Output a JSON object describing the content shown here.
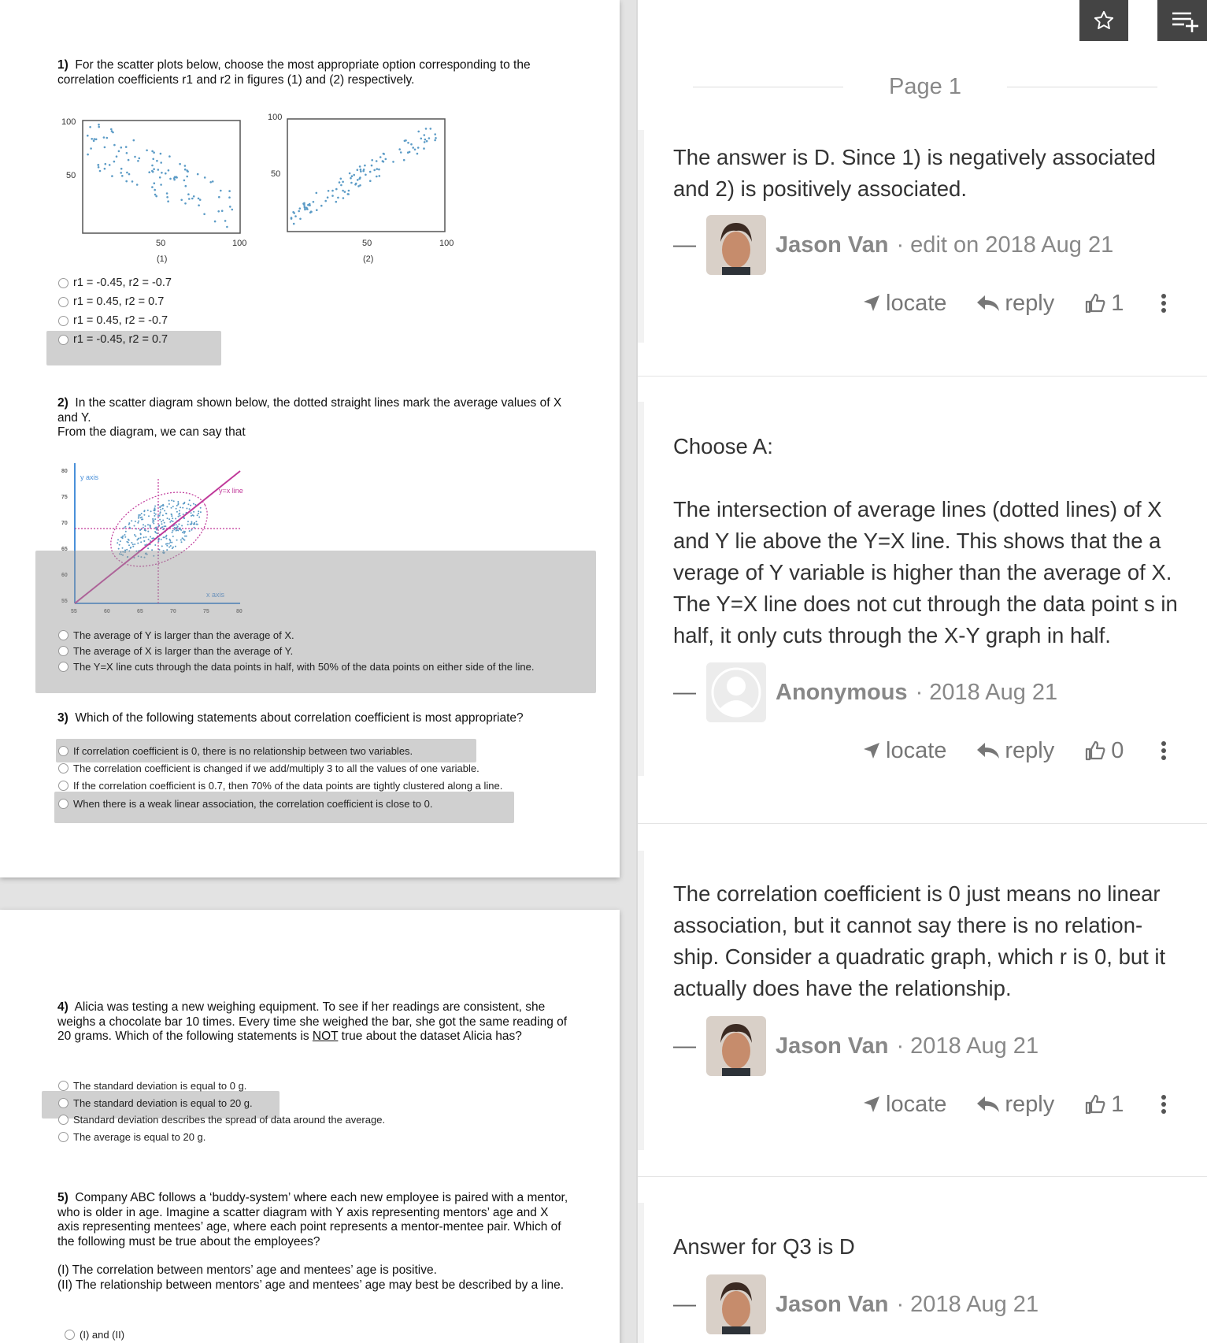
{
  "document": {
    "q1": {
      "number": "1)",
      "text": "For the scatter plots below, choose the most appropriate option corresponding to the correlation coefficients r1 and r2 in figures (1) and (2) respectively.",
      "plot1": {
        "y_top": "100",
        "y_mid": "50",
        "x_mid": "50",
        "x_right": "100",
        "caption": "(1)"
      },
      "plot2": {
        "y_top": "100",
        "y_mid": "50",
        "x_mid": "50",
        "x_right": "100",
        "caption": "(2)"
      },
      "options": [
        "r1 = -0.45, r2 = -0.7",
        "r1 = 0.45, r2 = 0.7",
        "r1 = 0.45, r2 = -0.7",
        "r1 = -0.45, r2 = 0.7"
      ]
    },
    "q2": {
      "number": "2)",
      "text_line1": "In the scatter diagram shown below, the dotted straight lines mark the average values of X and Y.",
      "text_line2": "From the diagram, we can say that",
      "plot": {
        "y_axis_label": "y axis",
        "x_axis_label": "x axis",
        "line_label": "y=x line",
        "y_ticks": [
          "80",
          "75",
          "70",
          "65",
          "60",
          "55"
        ],
        "x_ticks": [
          "55",
          "60",
          "65",
          "70",
          "75",
          "80"
        ]
      },
      "options": [
        "The average of Y is larger than the average of X.",
        "The average of X is larger than the average of Y.",
        "The Y=X line cuts through the data points in half, with 50% of the data points on either side of the line."
      ]
    },
    "q3": {
      "number": "3)",
      "text": "Which of the following statements about correlation coefficient is most appropriate?",
      "options": [
        "If correlation coefficient is 0, there is no relationship between two variables.",
        "The correlation coefficient is changed if we add/multiply 3 to all the values of one variable.",
        "If the correlation coefficient is 0.7, then 70% of the data points are tightly clustered along a line.",
        "When there is a weak linear association, the correlation coefficient is close to 0."
      ]
    },
    "q4": {
      "number": "4)",
      "text_before": "Alicia was testing a new weighing equipment. To see if her readings are consistent, she weighs a chocolate bar 10 times. Every time she weighed the bar, she got the same reading of 20 grams. Which of the following statements is ",
      "text_underlined": "NOT",
      "text_after": " true about the dataset Alicia has?",
      "options": [
        "The standard deviation is equal to 0 g.",
        "The standard deviation is equal to 20 g.",
        "Standard deviation describes the spread of data around the average.",
        "The average is equal to 20 g."
      ]
    },
    "q5": {
      "number": "5)",
      "text": "Company ABC follows a ‘buddy-system’ where each new employee is paired with a mentor, who is older in age. Imagine a scatter diagram with Y axis representing mentors’ age and X axis representing mentees’ age, where each point represents a mentor-mentee pair. Which of the following must be true about the employees?",
      "statement1": "(I) The correlation between mentors’ age and mentees’ age is positive.",
      "statement2": "(II) The relationship between mentors’ age and mentees’ age may best be described by a line.",
      "options": [
        "(I) and (II)"
      ]
    }
  },
  "panel": {
    "toolbar": {
      "star_icon": "star-icon",
      "playlist_add_icon": "playlist-add-icon"
    },
    "page_label": "Page 1",
    "action_labels": {
      "locate": "locate",
      "reply": "reply"
    },
    "comments": [
      {
        "text": "The answer is D. Since 1) is negatively associated and 2) is positively associated.",
        "author": "Jason Van",
        "meta": "· edit on 2018 Aug 21",
        "likes": "1"
      },
      {
        "text_line1": "Choose A:",
        "text": "The intersection of average lines (dotted lines) of X and Y lie above the Y=X line. This shows that the a verage of Y variable is higher than the average of X. The Y=X line does not cut through the data point s in half, it only cuts through the X-Y graph in half.",
        "author": "Anonymous",
        "meta": "· 2018 Aug 21",
        "likes": "0"
      },
      {
        "text": "The correlation coefficient is 0 just means no linear association, but it cannot say there is no relation- ship. Consider a quadratic graph, which r is 0, but it actually does have the relationship.",
        "author": "Jason Van",
        "meta": "· 2018 Aug 21",
        "likes": "1"
      },
      {
        "text": "Answer for Q3 is D",
        "author": "Jason Van",
        "meta": "· 2018 Aug 21"
      }
    ]
  }
}
